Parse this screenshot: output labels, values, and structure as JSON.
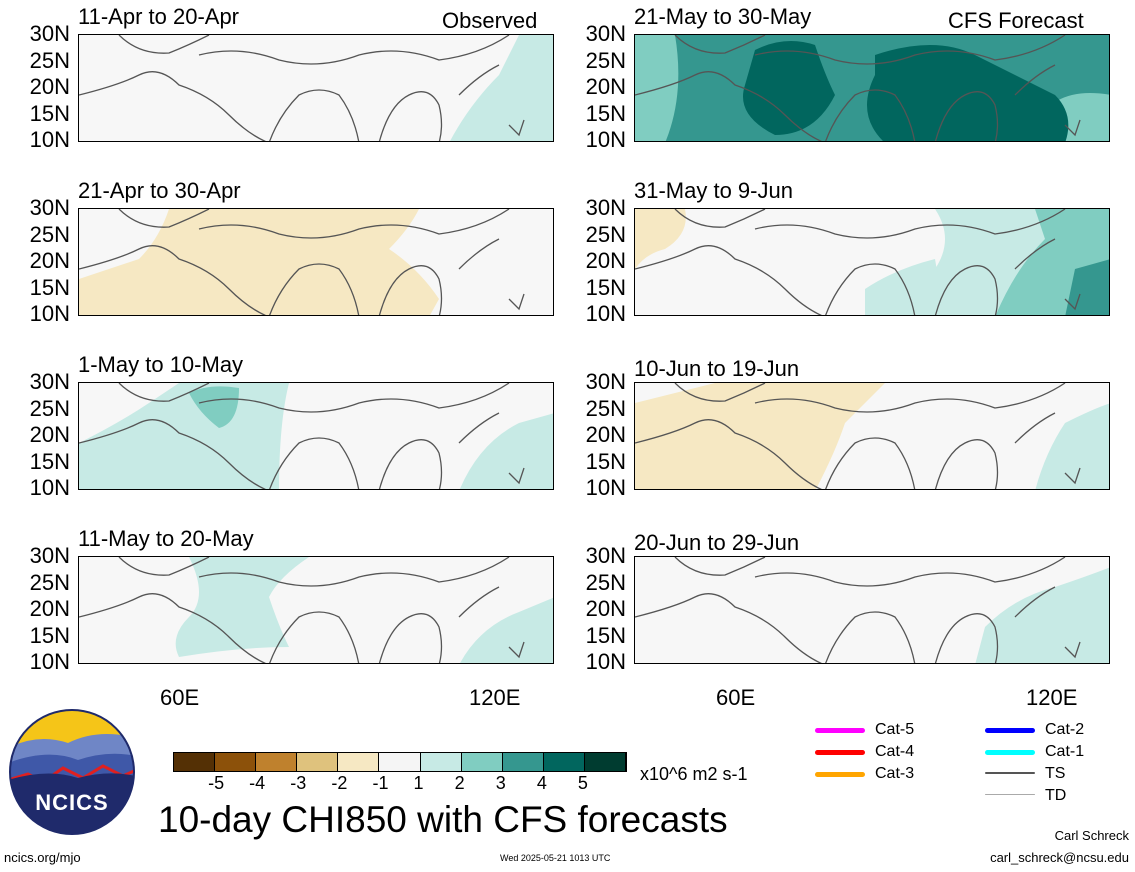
{
  "panels": [
    {
      "id": "p1",
      "title": "11-Apr to 20-Apr",
      "label": "Observed"
    },
    {
      "id": "p2",
      "title": "21-Apr to 30-Apr",
      "label": ""
    },
    {
      "id": "p3",
      "title": "1-May to 10-May",
      "label": ""
    },
    {
      "id": "p4",
      "title": "11-May to 20-May",
      "label": ""
    },
    {
      "id": "p5",
      "title": "21-May to 30-May",
      "label": "CFS Forecast"
    },
    {
      "id": "p6",
      "title": "31-May to 9-Jun",
      "label": ""
    },
    {
      "id": "p7",
      "title": "10-Jun to 19-Jun",
      "label": ""
    },
    {
      "id": "p8",
      "title": "20-Jun to 29-Jun",
      "label": ""
    }
  ],
  "lat_ticks": [
    "30N",
    "25N",
    "20N",
    "15N",
    "10N"
  ],
  "lon_ticks": [
    "60E",
    "120E"
  ],
  "colorbar": {
    "colors": [
      "#543005",
      "#8c510a",
      "#bf812d",
      "#dfc27d",
      "#f6e8c3",
      "#f5f5f5",
      "#c7eae5",
      "#80cdc1",
      "#35978f",
      "#01665e",
      "#003c30"
    ],
    "labels": [
      "-5",
      "-4",
      "-3",
      "-2",
      "-1",
      "1",
      "2",
      "3",
      "4",
      "5"
    ],
    "units": "x10^6 m2 s-1"
  },
  "storm_legend": [
    {
      "name": "Cat-5",
      "color": "#ff00ff"
    },
    {
      "name": "Cat-4",
      "color": "#ff0000"
    },
    {
      "name": "Cat-3",
      "color": "#ffa500"
    },
    {
      "name": "Cat-2",
      "color": "#0000ff"
    },
    {
      "name": "Cat-1",
      "color": "#00ffff"
    },
    {
      "name": "TS",
      "color": "#555555"
    },
    {
      "name": "TD",
      "color": "#aaaaaa"
    }
  ],
  "logo_text": "NCICS",
  "main_title": "10-day CHI850 with CFS forecasts",
  "footer": {
    "left": "ncics.org/mjo",
    "center": "Wed 2025-05-21 1013 UTC",
    "author": "Carl Schreck",
    "email": "carl_schreck@ncsu.edu"
  }
}
